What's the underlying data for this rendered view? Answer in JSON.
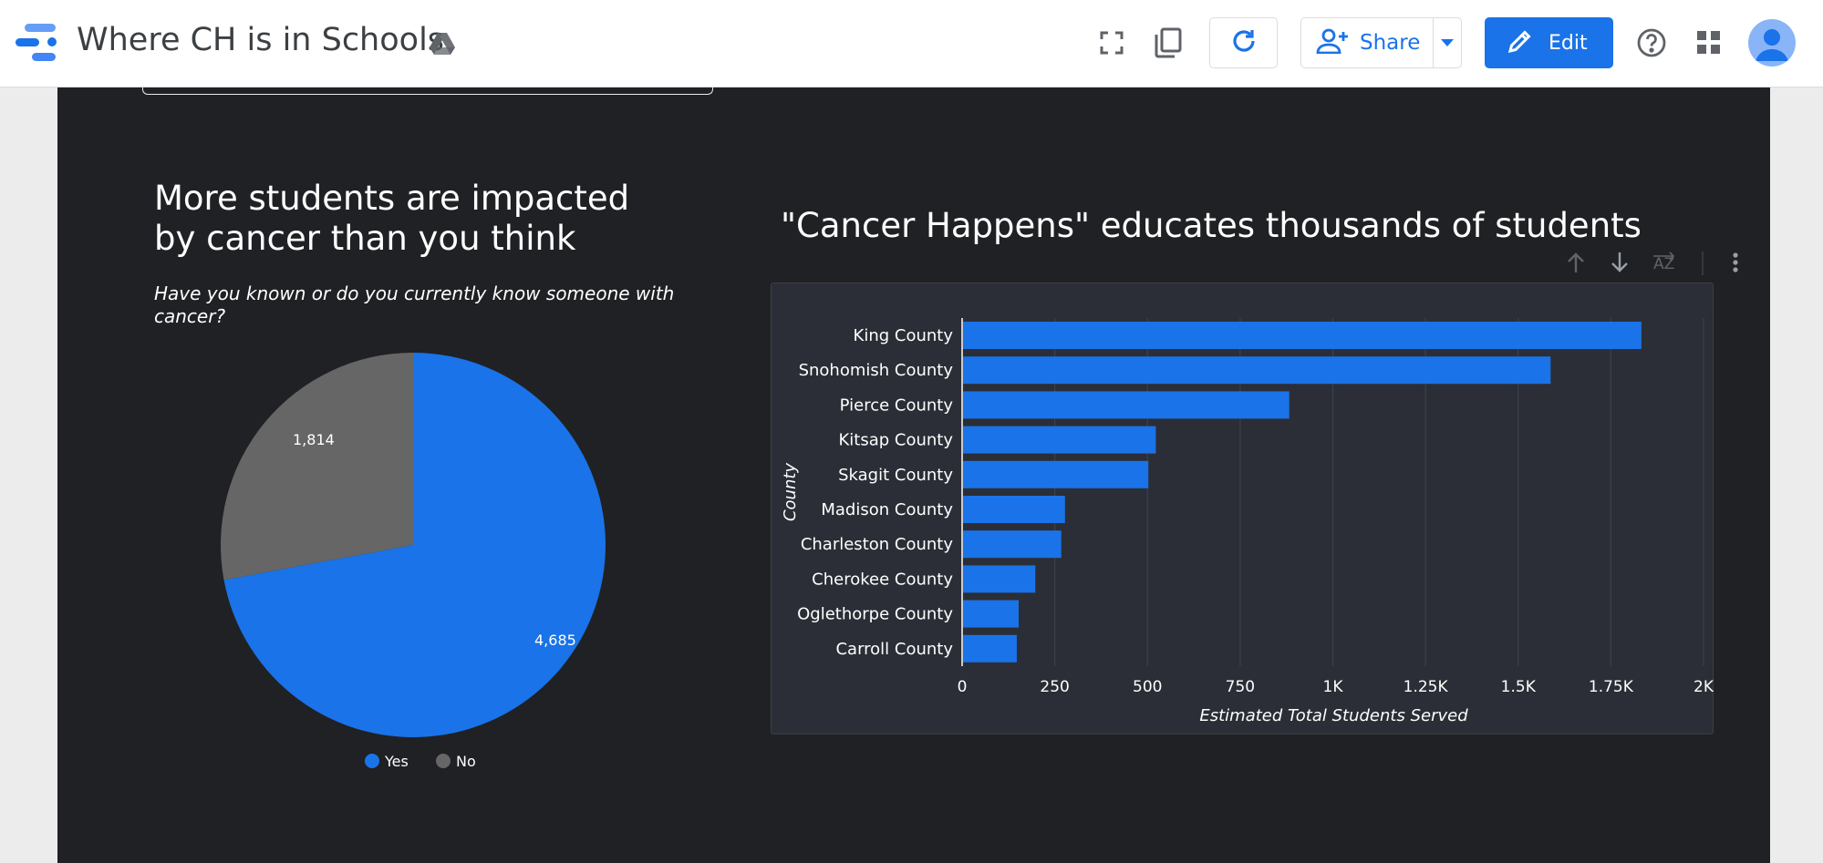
{
  "app": {
    "title": "Where CH is in Schools",
    "share_label": "Share",
    "edit_label": "Edit",
    "brand_color": "#1a73e8",
    "icons": [
      "looker-studio-logo-icon",
      "drive-icon",
      "fullscreen-icon",
      "copy-icon",
      "refresh-icon",
      "add-person-icon",
      "dropdown-arrow-icon",
      "pencil-icon",
      "help-icon",
      "apps-grid-icon",
      "avatar-icon"
    ]
  },
  "report": {
    "pie_title": "More students are impacted by cancer than you think",
    "pie_subtitle": "Have you known or do you currently know someone with cancer?",
    "bar_title": "\"Cancer Happens\" educates thousands of students",
    "background_color": "#202124"
  },
  "chart_data": [
    {
      "type": "pie",
      "categories": [
        "Yes",
        "No"
      ],
      "values": [
        4685,
        1814
      ],
      "labels": [
        "4,685",
        "1,814"
      ],
      "colors": [
        "#1a73e8",
        "#666666"
      ],
      "legend": "bottom",
      "title": "More students are impacted by cancer than you think",
      "subtitle": "Have you known or do you currently know someone with cancer?"
    },
    {
      "type": "bar",
      "orientation": "horizontal",
      "categories": [
        "King County",
        "Snohomish County",
        "Pierce County",
        "Kitsap County",
        "Skagit County",
        "Madison County",
        "Charleston County",
        "Cherokee County",
        "Oglethorpe County",
        "Carroll County"
      ],
      "values": [
        1830,
        1585,
        880,
        520,
        500,
        275,
        265,
        195,
        150,
        145
      ],
      "xlim": [
        0,
        2000
      ],
      "xticks": [
        0,
        250,
        500,
        750,
        1000,
        1250,
        1500,
        1750,
        2000
      ],
      "xtick_labels": [
        "0",
        "250",
        "500",
        "750",
        "1K",
        "1.25K",
        "1.5K",
        "1.75K",
        "2K"
      ],
      "xlabel": "Estimated Total Students Served",
      "ylabel": "County",
      "grid": true,
      "bar_color": "#1a73e8",
      "title": "\"Cancer Happens\" educates thousands of students"
    }
  ]
}
